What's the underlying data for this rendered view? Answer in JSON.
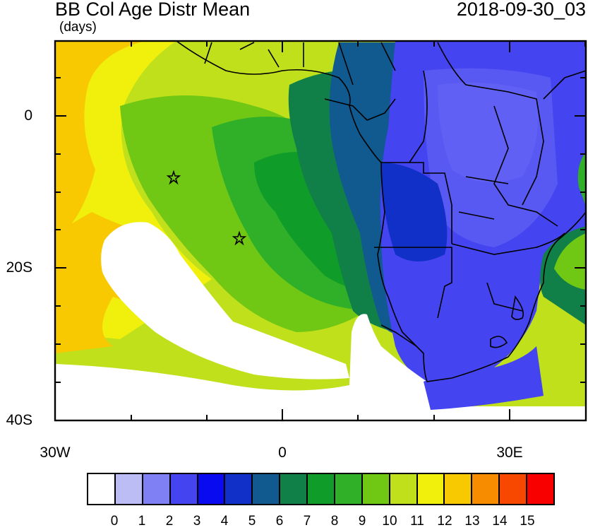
{
  "header": {
    "title": "BB Col Age Distr Mean",
    "units": "(days)",
    "timestamp": "2018-09-30_03"
  },
  "map": {
    "region": "Southern Africa and South Atlantic",
    "lat_labels": [
      "0",
      "20S",
      "40S"
    ],
    "lon_labels": [
      "30W",
      "0",
      "30E"
    ],
    "markers": [
      {
        "type": "star",
        "lon": -14.4,
        "lat": -7.9
      },
      {
        "type": "star",
        "lon": -5.7,
        "lat": -15.9
      }
    ]
  },
  "colorbar": {
    "labels": [
      "0",
      "1",
      "2",
      "3",
      "4",
      "5",
      "6",
      "7",
      "8",
      "9",
      "10",
      "11",
      "12",
      "13",
      "14",
      "15"
    ],
    "colors": [
      "#ffffff",
      "#bdbdf5",
      "#8080f5",
      "#4444f0",
      "#0a0af0",
      "#1030c8",
      "#105a90",
      "#108048",
      "#109c28",
      "#30b028",
      "#70c814",
      "#c0e01c",
      "#f0f00c",
      "#f8c800",
      "#f88c00",
      "#f84800",
      "#f80000"
    ]
  }
}
